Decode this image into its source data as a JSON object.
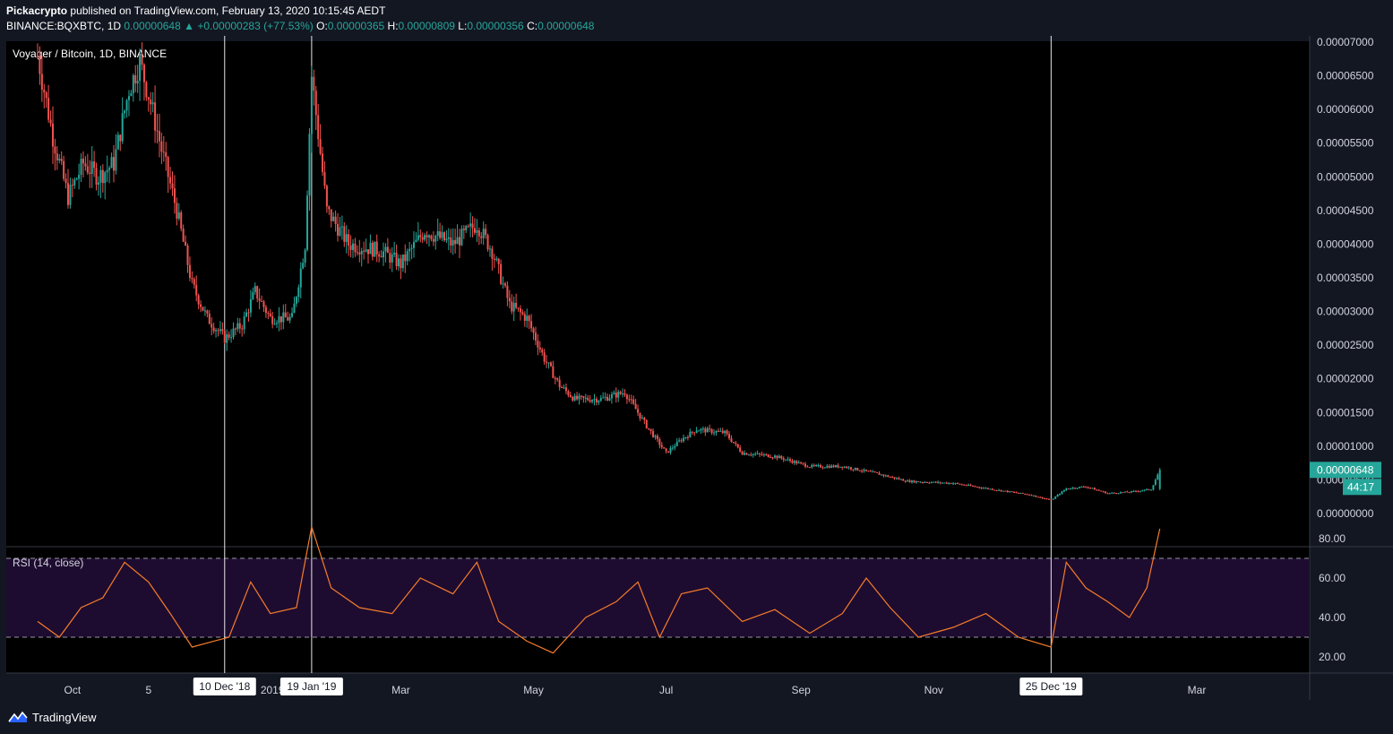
{
  "header": {
    "publisher": "Pickacrypto",
    "published_text": "published on TradingView.com, February 13, 2020 10:15:45 AEDT",
    "symbol": "BINANCE:BQXBTC, 1D",
    "last": "0.00000648",
    "change": "▲ +0.00000283 (+77.53%)",
    "o_label": "O:",
    "o_value": "0.00000365",
    "h_label": "H:",
    "h_value": "0.00000809",
    "l_label": "L:",
    "l_value": "0.00000356",
    "c_label": "C:",
    "c_value": "0.00000648"
  },
  "footer": {
    "brand": "TradingView",
    "logo_icon": "tradingview-logo-icon"
  },
  "colors": {
    "up": "#26a69a",
    "down": "#ef5350",
    "rsi": "#f57c2a",
    "rsi_band": "#1e0c30",
    "bg": "#000000",
    "panel": "#131722"
  },
  "chart_data": {
    "type": "candlestick",
    "title": "Voyager / Bitcoin, 1D, BINANCE",
    "x_ticks": [
      "Oct",
      "5",
      "2019",
      "Mar",
      "May",
      "Jul",
      "Sep",
      "Nov",
      "Mar"
    ],
    "y_ticks": [
      "0.00007000",
      "0.00006500",
      "0.00006000",
      "0.00005500",
      "0.00005000",
      "0.00004500",
      "0.00004000",
      "0.00003500",
      "0.00003000",
      "0.00002500",
      "0.00002000",
      "0.00001500",
      "0.00001000",
      "0.00000500",
      "0.00000000"
    ],
    "ylim": [
      0,
      7e-05
    ],
    "last_price_label": "0.00000648",
    "countdown_label": "44:17",
    "marker_dates": [
      "10 Dec '18",
      "19 Jan '19",
      "25 Dec '19"
    ],
    "price_path": [
      [
        "2018-09-15",
        6.8
      ],
      [
        "2018-09-22",
        5.6
      ],
      [
        "2018-09-29",
        4.7
      ],
      [
        "2018-10-06",
        5.2
      ],
      [
        "2018-10-13",
        5.0
      ],
      [
        "2018-10-20",
        5.2
      ],
      [
        "2018-10-27",
        6.3
      ],
      [
        "2018-11-01",
        6.7
      ],
      [
        "2018-11-06",
        6.1
      ],
      [
        "2018-11-11",
        5.4
      ],
      [
        "2018-11-18",
        4.5
      ],
      [
        "2018-11-25",
        3.4
      ],
      [
        "2018-12-02",
        2.9
      ],
      [
        "2018-12-10",
        2.6
      ],
      [
        "2018-12-18",
        2.8
      ],
      [
        "2018-12-24",
        3.3
      ],
      [
        "2018-12-31",
        2.9
      ],
      [
        "2019-01-10",
        2.9
      ],
      [
        "2019-01-16",
        4.0
      ],
      [
        "2019-01-19",
        6.5
      ],
      [
        "2019-01-26",
        4.5
      ],
      [
        "2019-02-05",
        4.0
      ],
      [
        "2019-02-20",
        3.9
      ],
      [
        "2019-03-01",
        3.7
      ],
      [
        "2019-03-12",
        4.2
      ],
      [
        "2019-03-25",
        4.0
      ],
      [
        "2019-04-05",
        4.3
      ],
      [
        "2019-04-12",
        3.9
      ],
      [
        "2019-04-20",
        3.1
      ],
      [
        "2019-04-28",
        2.9
      ],
      [
        "2019-05-06",
        2.3
      ],
      [
        "2019-05-13",
        1.9
      ],
      [
        "2019-05-20",
        1.7
      ],
      [
        "2019-06-01",
        1.7
      ],
      [
        "2019-06-12",
        1.8
      ],
      [
        "2019-06-22",
        1.3
      ],
      [
        "2019-07-01",
        0.9
      ],
      [
        "2019-07-08",
        1.1
      ],
      [
        "2019-07-15",
        1.25
      ],
      [
        "2019-07-28",
        1.2
      ],
      [
        "2019-08-05",
        0.9
      ],
      [
        "2019-08-20",
        0.85
      ],
      [
        "2019-09-05",
        0.7
      ],
      [
        "2019-09-20",
        0.7
      ],
      [
        "2019-10-05",
        0.6
      ],
      [
        "2019-10-20",
        0.48
      ],
      [
        "2019-11-10",
        0.45
      ],
      [
        "2019-11-30",
        0.35
      ],
      [
        "2019-12-15",
        0.28
      ],
      [
        "2019-12-25",
        0.2
      ],
      [
        "2020-01-01",
        0.37
      ],
      [
        "2020-01-10",
        0.4
      ],
      [
        "2020-01-20",
        0.3
      ],
      [
        "2020-01-30",
        0.32
      ],
      [
        "2020-02-09",
        0.36
      ],
      [
        "2020-02-13",
        0.648
      ]
    ],
    "rsi": {
      "label": "RSI (14, close)",
      "y_ticks": [
        "80.00",
        "60.00",
        "40.00",
        "20.00"
      ],
      "ylim": [
        10,
        95
      ],
      "upper_band": 70,
      "lower_band": 30,
      "path": [
        [
          "2018-09-15",
          38
        ],
        [
          "2018-09-25",
          30
        ],
        [
          "2018-10-05",
          45
        ],
        [
          "2018-10-15",
          50
        ],
        [
          "2018-10-25",
          68
        ],
        [
          "2018-11-05",
          58
        ],
        [
          "2018-11-15",
          42
        ],
        [
          "2018-11-25",
          25
        ],
        [
          "2018-12-05",
          28
        ],
        [
          "2018-12-12",
          30
        ],
        [
          "2018-12-22",
          58
        ],
        [
          "2018-12-31",
          42
        ],
        [
          "2019-01-12",
          45
        ],
        [
          "2019-01-19",
          86
        ],
        [
          "2019-01-28",
          55
        ],
        [
          "2019-02-10",
          45
        ],
        [
          "2019-02-25",
          42
        ],
        [
          "2019-03-10",
          60
        ],
        [
          "2019-03-25",
          52
        ],
        [
          "2019-04-05",
          68
        ],
        [
          "2019-04-15",
          38
        ],
        [
          "2019-04-28",
          28
        ],
        [
          "2019-05-10",
          22
        ],
        [
          "2019-05-25",
          40
        ],
        [
          "2019-06-08",
          48
        ],
        [
          "2019-06-18",
          58
        ],
        [
          "2019-06-28",
          30
        ],
        [
          "2019-07-08",
          52
        ],
        [
          "2019-07-20",
          55
        ],
        [
          "2019-08-05",
          38
        ],
        [
          "2019-08-20",
          44
        ],
        [
          "2019-09-05",
          32
        ],
        [
          "2019-09-20",
          42
        ],
        [
          "2019-10-01",
          60
        ],
        [
          "2019-10-12",
          45
        ],
        [
          "2019-10-25",
          30
        ],
        [
          "2019-11-10",
          35
        ],
        [
          "2019-11-25",
          42
        ],
        [
          "2019-12-10",
          30
        ],
        [
          "2019-12-25",
          25
        ],
        [
          "2020-01-01",
          68
        ],
        [
          "2020-01-10",
          55
        ],
        [
          "2020-01-20",
          48
        ],
        [
          "2020-01-30",
          40
        ],
        [
          "2020-02-07",
          55
        ],
        [
          "2020-02-13",
          85
        ]
      ]
    }
  }
}
